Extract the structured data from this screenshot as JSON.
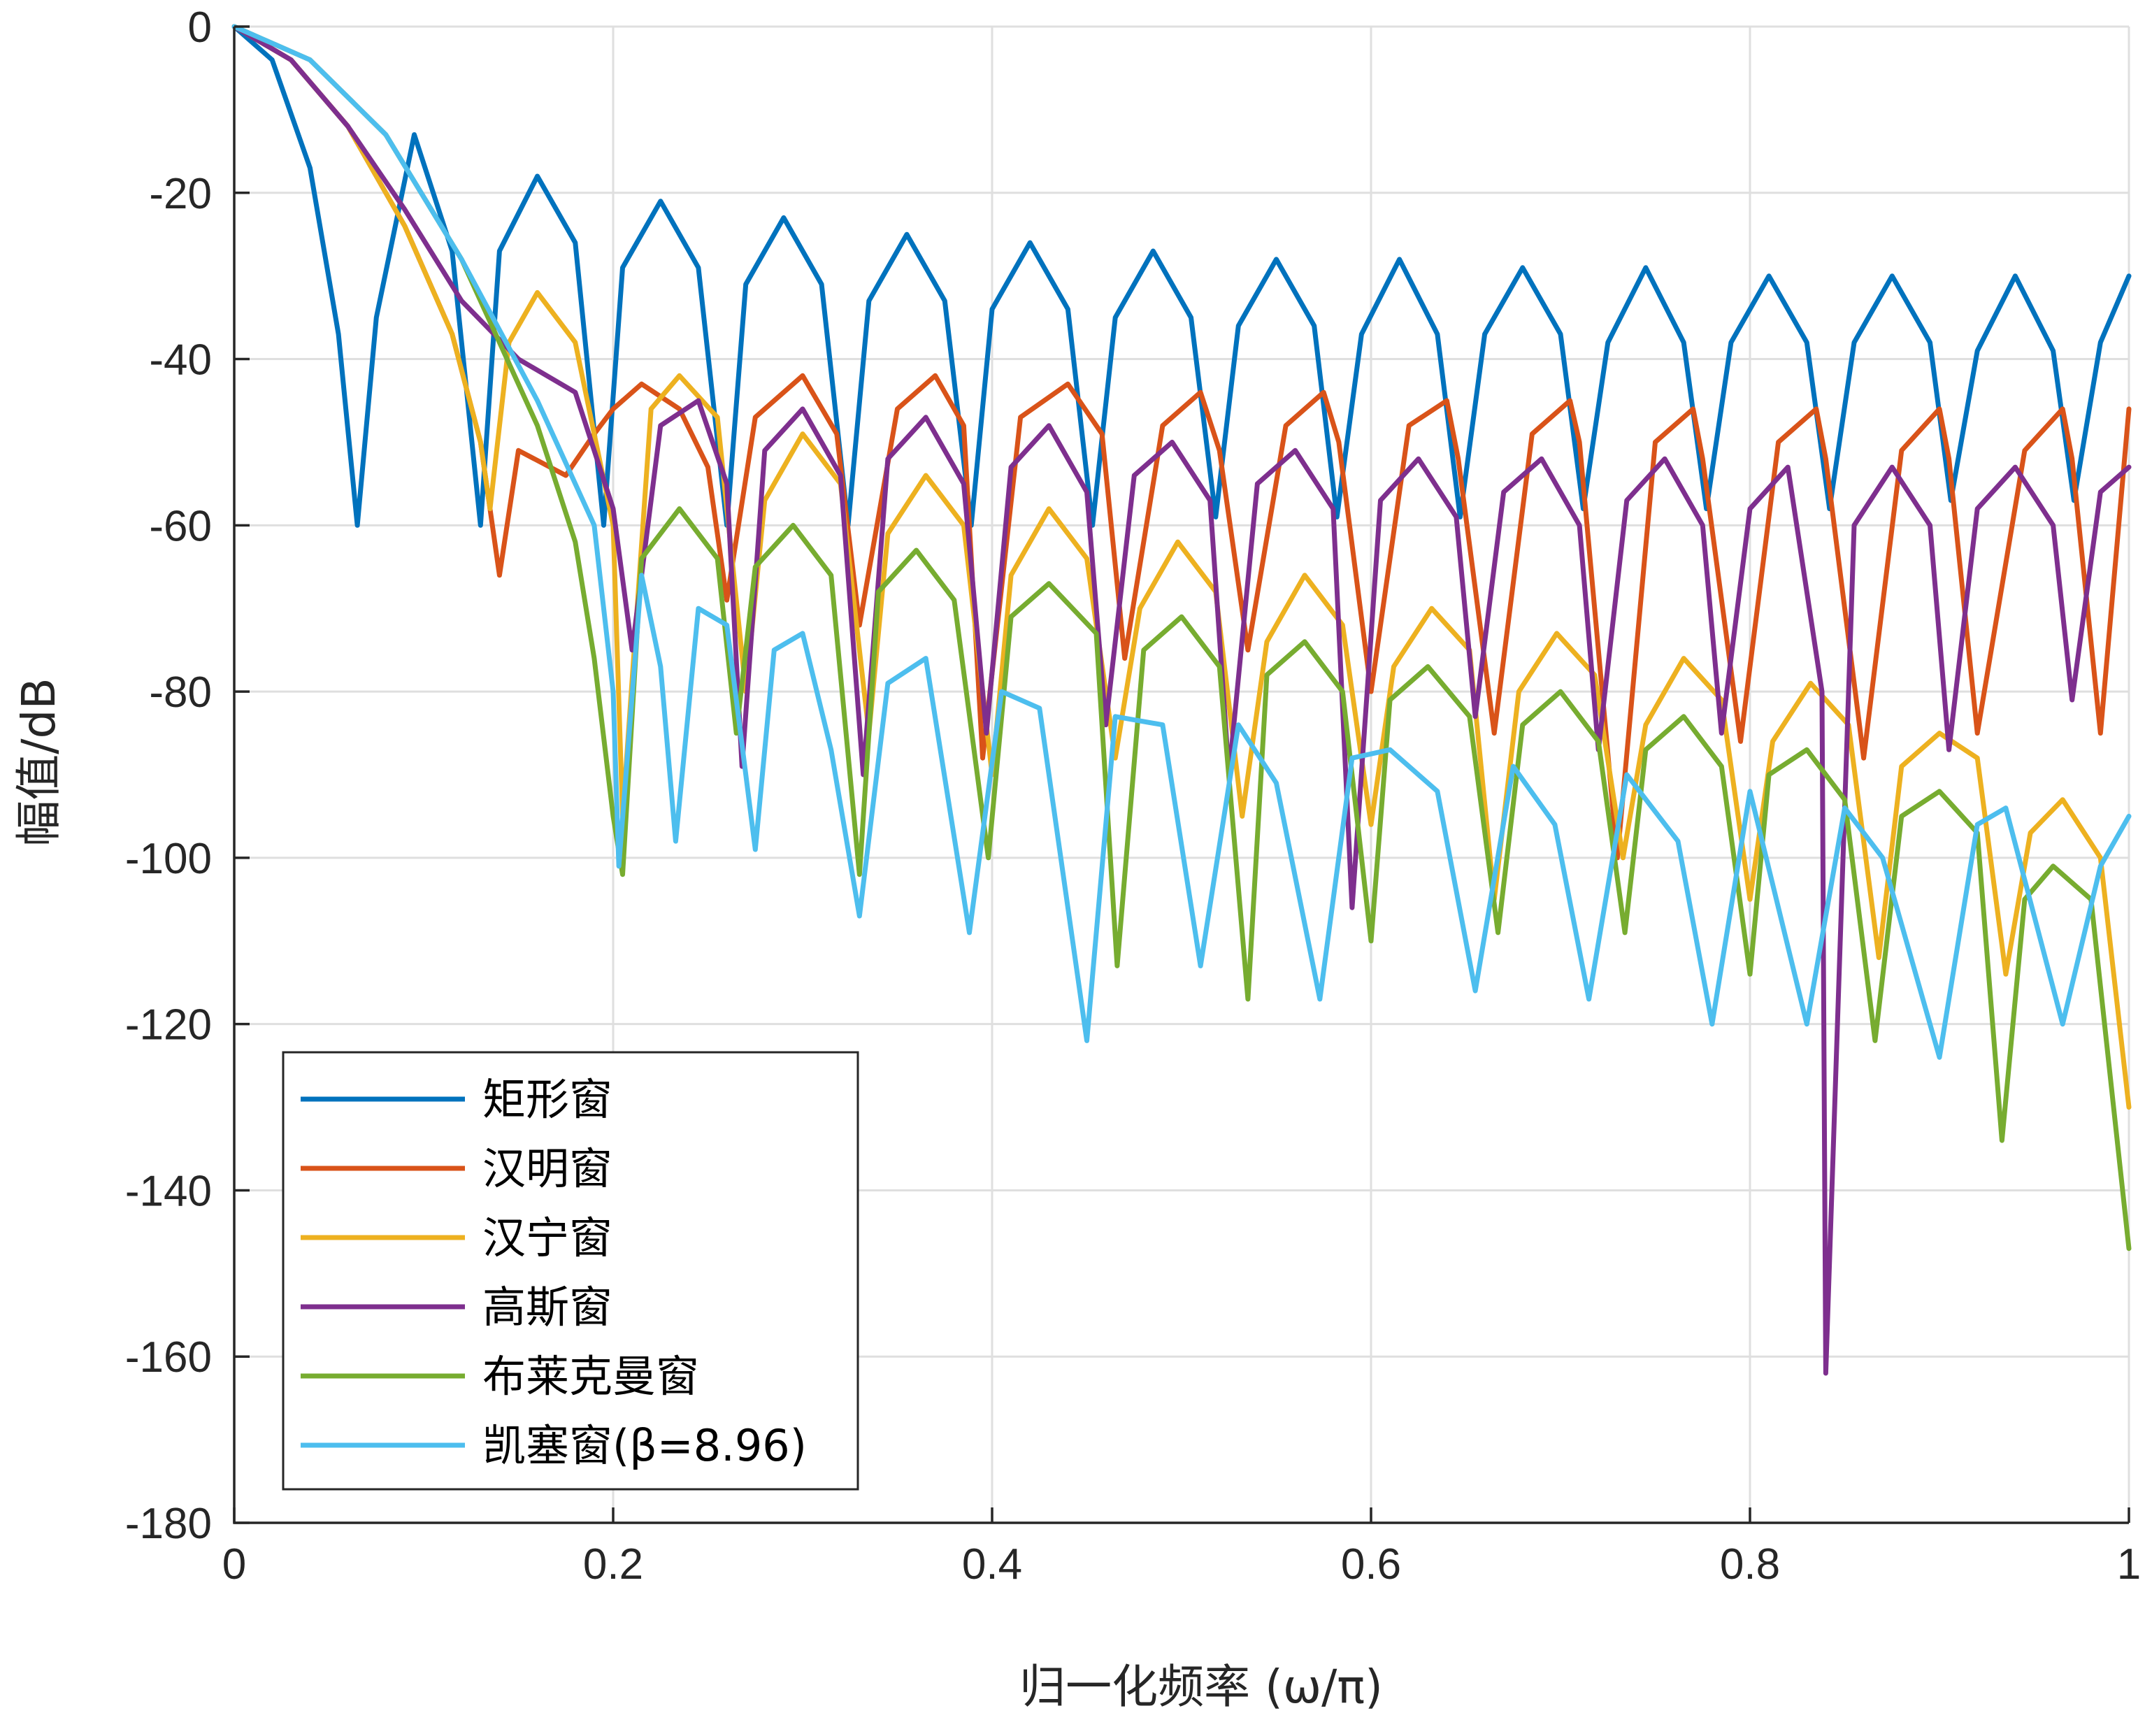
{
  "chart_data": {
    "type": "line",
    "title": "",
    "xlabel": "归一化频率 (ω/π)",
    "ylabel": "幅值/dB",
    "xlim": [
      0,
      1
    ],
    "ylim": [
      -180,
      0
    ],
    "x_ticks": [
      0,
      0.2,
      0.4,
      0.6,
      0.8,
      1
    ],
    "x_tick_labels": [
      "0",
      "0.2",
      "0.4",
      "0.6",
      "0.8",
      "1"
    ],
    "y_ticks": [
      0,
      -20,
      -40,
      -60,
      -80,
      -100,
      -120,
      -140,
      -160,
      -180
    ],
    "y_tick_labels": [
      "0",
      "-20",
      "-40",
      "-60",
      "-80",
      "-100",
      "-120",
      "-140",
      "-160",
      "-180"
    ],
    "grid": true,
    "legend_position": "bottom-left",
    "series": [
      {
        "name": "矩形窗",
        "color": "#0072BD",
        "x": [
          0,
          0.02,
          0.04,
          0.055,
          0.065,
          0.075,
          0.095,
          0.115,
          0.13,
          0.14,
          0.16,
          0.18,
          0.195,
          0.205,
          0.225,
          0.245,
          0.26,
          0.27,
          0.29,
          0.31,
          0.324,
          0.335,
          0.355,
          0.375,
          0.389,
          0.4,
          0.42,
          0.44,
          0.453,
          0.465,
          0.485,
          0.505,
          0.518,
          0.53,
          0.55,
          0.57,
          0.582,
          0.595,
          0.615,
          0.635,
          0.647,
          0.66,
          0.68,
          0.7,
          0.712,
          0.725,
          0.745,
          0.765,
          0.777,
          0.79,
          0.81,
          0.83,
          0.842,
          0.855,
          0.875,
          0.895,
          0.906,
          0.92,
          0.94,
          0.96,
          0.971,
          0.985,
          1
        ],
        "y": [
          0,
          -4,
          -17,
          -37,
          -60,
          -35,
          -13,
          -27,
          -60,
          -27,
          -18,
          -26,
          -60,
          -29,
          -21,
          -29,
          -60,
          -31,
          -23,
          -31,
          -60,
          -33,
          -25,
          -33,
          -60,
          -34,
          -26,
          -34,
          -60,
          -35,
          -27,
          -35,
          -59,
          -36,
          -28,
          -36,
          -59,
          -37,
          -28,
          -37,
          -59,
          -37,
          -29,
          -37,
          -58,
          -38,
          -29,
          -38,
          -58,
          -38,
          -30,
          -38,
          -58,
          -38,
          -30,
          -38,
          -57,
          -39,
          -30,
          -39,
          -57,
          -38,
          -30
        ]
      },
      {
        "name": "汉明窗",
        "color": "#D95319",
        "x": [
          0,
          0.03,
          0.06,
          0.09,
          0.115,
          0.13,
          0.14,
          0.15,
          0.175,
          0.19,
          0.2,
          0.215,
          0.235,
          0.25,
          0.26,
          0.275,
          0.3,
          0.318,
          0.33,
          0.35,
          0.37,
          0.385,
          0.395,
          0.415,
          0.44,
          0.458,
          0.47,
          0.49,
          0.51,
          0.52,
          0.535,
          0.555,
          0.575,
          0.583,
          0.6,
          0.62,
          0.64,
          0.646,
          0.665,
          0.685,
          0.705,
          0.71,
          0.73,
          0.75,
          0.77,
          0.775,
          0.795,
          0.815,
          0.835,
          0.84,
          0.86,
          0.88,
          0.9,
          0.905,
          0.92,
          0.945,
          0.965,
          0.97,
          0.985,
          1
        ],
        "y": [
          0,
          -4,
          -12,
          -24,
          -37,
          -50,
          -66,
          -51,
          -54,
          -49,
          -46,
          -43,
          -46,
          -53,
          -69,
          -47,
          -42,
          -49,
          -72,
          -46,
          -42,
          -48,
          -88,
          -47,
          -43,
          -49,
          -76,
          -48,
          -44,
          -51,
          -75,
          -48,
          -44,
          -50,
          -80,
          -48,
          -45,
          -52,
          -85,
          -49,
          -45,
          -50,
          -100,
          -50,
          -46,
          -52,
          -86,
          -50,
          -46,
          -52,
          -88,
          -51,
          -46,
          -52,
          -85,
          -51,
          -46,
          -52,
          -85,
          -46
        ]
      },
      {
        "name": "汉宁窗",
        "color": "#EDB120",
        "x": [
          0,
          0.03,
          0.06,
          0.09,
          0.115,
          0.13,
          0.135,
          0.145,
          0.16,
          0.18,
          0.2,
          0.205,
          0.22,
          0.235,
          0.255,
          0.27,
          0.28,
          0.3,
          0.32,
          0.335,
          0.345,
          0.365,
          0.385,
          0.4,
          0.41,
          0.43,
          0.45,
          0.465,
          0.478,
          0.498,
          0.518,
          0.532,
          0.545,
          0.565,
          0.585,
          0.6,
          0.612,
          0.632,
          0.652,
          0.665,
          0.678,
          0.698,
          0.718,
          0.733,
          0.745,
          0.765,
          0.785,
          0.8,
          0.812,
          0.832,
          0.852,
          0.868,
          0.88,
          0.9,
          0.92,
          0.935,
          0.948,
          0.965,
          0.985,
          1
        ],
        "y": [
          0,
          -4,
          -12,
          -24,
          -37,
          -50,
          -58,
          -38,
          -32,
          -38,
          -60,
          -95,
          -46,
          -42,
          -47,
          -80,
          -57,
          -49,
          -55,
          -85,
          -61,
          -54,
          -60,
          -90,
          -66,
          -58,
          -64,
          -88,
          -70,
          -62,
          -68,
          -95,
          -74,
          -66,
          -72,
          -96,
          -77,
          -70,
          -75,
          -105,
          -80,
          -73,
          -78,
          -100,
          -84,
          -76,
          -81,
          -105,
          -86,
          -79,
          -84,
          -112,
          -89,
          -85,
          -88,
          -114,
          -97,
          -93,
          -100,
          -130
        ]
      },
      {
        "name": "高斯窗",
        "color": "#7E2F8E",
        "x": [
          0,
          0.03,
          0.06,
          0.09,
          0.12,
          0.15,
          0.18,
          0.2,
          0.21,
          0.225,
          0.245,
          0.26,
          0.268,
          0.28,
          0.3,
          0.32,
          0.332,
          0.345,
          0.365,
          0.385,
          0.397,
          0.41,
          0.43,
          0.45,
          0.46,
          0.475,
          0.495,
          0.515,
          0.525,
          0.54,
          0.56,
          0.58,
          0.59,
          0.605,
          0.625,
          0.645,
          0.655,
          0.67,
          0.69,
          0.71,
          0.72,
          0.735,
          0.755,
          0.775,
          0.785,
          0.8,
          0.82,
          0.838,
          0.84,
          0.855,
          0.875,
          0.895,
          0.905,
          0.92,
          0.94,
          0.96,
          0.97,
          0.985,
          1
        ],
        "y": [
          0,
          -4,
          -12,
          -22,
          -33,
          -40,
          -44,
          -58,
          -75,
          -48,
          -45,
          -55,
          -89,
          -51,
          -46,
          -54,
          -90,
          -52,
          -47,
          -55,
          -85,
          -53,
          -48,
          -56,
          -84,
          -54,
          -50,
          -57,
          -90,
          -55,
          -51,
          -58,
          -106,
          -57,
          -52,
          -59,
          -83,
          -56,
          -52,
          -60,
          -87,
          -57,
          -52,
          -60,
          -85,
          -58,
          -53,
          -80,
          -162,
          -60,
          -53,
          -60,
          -87,
          -58,
          -53,
          -60,
          -81,
          -56,
          -53
        ]
      },
      {
        "name": "布莱克曼窗",
        "color": "#77AC30",
        "x": [
          0,
          0.04,
          0.08,
          0.12,
          0.16,
          0.18,
          0.19,
          0.2,
          0.205,
          0.215,
          0.235,
          0.255,
          0.265,
          0.275,
          0.295,
          0.315,
          0.33,
          0.34,
          0.36,
          0.38,
          0.398,
          0.41,
          0.43,
          0.455,
          0.466,
          0.48,
          0.5,
          0.52,
          0.535,
          0.545,
          0.565,
          0.585,
          0.6,
          0.61,
          0.63,
          0.652,
          0.667,
          0.68,
          0.7,
          0.72,
          0.734,
          0.745,
          0.765,
          0.785,
          0.8,
          0.81,
          0.83,
          0.85,
          0.866,
          0.88,
          0.9,
          0.92,
          0.933,
          0.945,
          0.96,
          0.98,
          1
        ],
        "y": [
          0,
          -4,
          -13,
          -28,
          -48,
          -62,
          -76,
          -95,
          -102,
          -64,
          -58,
          -64,
          -85,
          -65,
          -60,
          -66,
          -102,
          -68,
          -63,
          -69,
          -100,
          -71,
          -67,
          -73,
          -113,
          -75,
          -71,
          -77,
          -117,
          -78,
          -74,
          -80,
          -110,
          -81,
          -77,
          -83,
          -109,
          -84,
          -80,
          -86,
          -109,
          -87,
          -83,
          -89,
          -114,
          -90,
          -87,
          -93,
          -122,
          -95,
          -92,
          -97,
          -134,
          -105,
          -101,
          -105,
          -147
        ]
      },
      {
        "name": "凯塞窗(β=8.96)",
        "color": "#4DBEEE",
        "x": [
          0,
          0.04,
          0.08,
          0.12,
          0.16,
          0.19,
          0.2,
          0.203,
          0.215,
          0.225,
          0.233,
          0.245,
          0.26,
          0.275,
          0.285,
          0.3,
          0.315,
          0.33,
          0.345,
          0.365,
          0.388,
          0.405,
          0.425,
          0.45,
          0.465,
          0.49,
          0.51,
          0.53,
          0.55,
          0.573,
          0.59,
          0.61,
          0.635,
          0.655,
          0.675,
          0.697,
          0.715,
          0.735,
          0.762,
          0.78,
          0.8,
          0.83,
          0.85,
          0.87,
          0.9,
          0.92,
          0.935,
          0.965,
          0.985,
          1
        ],
        "y": [
          0,
          -4,
          -13,
          -28,
          -45,
          -60,
          -80,
          -101,
          -66,
          -77,
          -98,
          -70,
          -72,
          -99,
          -75,
          -73,
          -87,
          -107,
          -79,
          -76,
          -109,
          -80,
          -82,
          -122,
          -83,
          -84,
          -113,
          -84,
          -91,
          -117,
          -88,
          -87,
          -92,
          -116,
          -89,
          -96,
          -117,
          -90,
          -98,
          -120,
          -92,
          -120,
          -94,
          -100,
          -124,
          -96,
          -94,
          -120,
          -101,
          -95
        ]
      }
    ]
  }
}
